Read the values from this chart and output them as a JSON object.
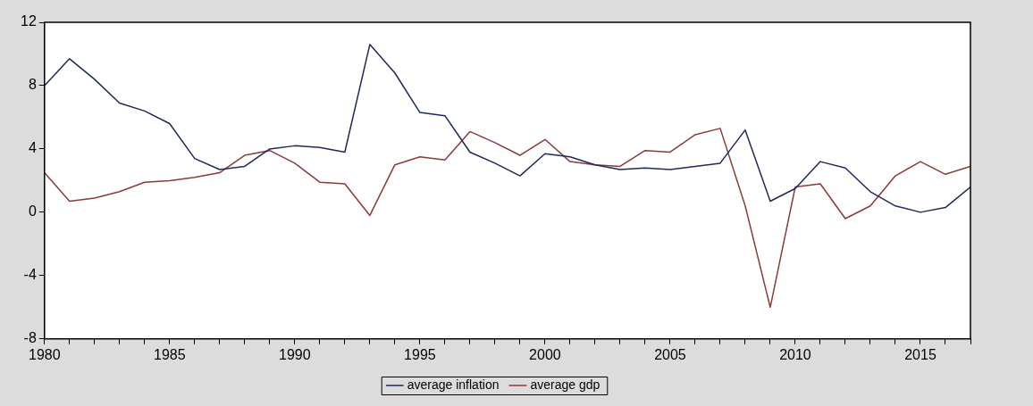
{
  "chart_data": {
    "type": "line",
    "x": [
      1980,
      1981,
      1982,
      1983,
      1984,
      1985,
      1986,
      1987,
      1988,
      1989,
      1990,
      1991,
      1992,
      1993,
      1994,
      1995,
      1996,
      1997,
      1998,
      1999,
      2000,
      2001,
      2002,
      2003,
      2004,
      2005,
      2006,
      2007,
      2008,
      2009,
      2010,
      2011,
      2012,
      2013,
      2014,
      2015,
      2016,
      2017
    ],
    "series": [
      {
        "name": "average inflation",
        "color": "#1f2a5a",
        "values": [
          8.0,
          9.7,
          8.4,
          6.9,
          6.4,
          5.6,
          3.4,
          2.7,
          2.9,
          4.0,
          4.2,
          4.1,
          3.8,
          10.6,
          8.8,
          6.3,
          6.1,
          3.8,
          3.1,
          2.3,
          3.7,
          3.5,
          3.0,
          2.7,
          2.8,
          2.7,
          2.9,
          3.1,
          5.2,
          0.7,
          1.5,
          3.2,
          2.8,
          1.3,
          0.4,
          0.0,
          0.3,
          1.6
        ]
      },
      {
        "name": "average gdp",
        "color": "#8b3a3a",
        "values": [
          2.5,
          0.7,
          0.9,
          1.3,
          1.9,
          2.0,
          2.2,
          2.5,
          3.6,
          3.9,
          3.1,
          1.9,
          1.8,
          -0.2,
          3.0,
          3.5,
          3.3,
          5.1,
          4.4,
          3.6,
          4.6,
          3.2,
          3.0,
          2.9,
          3.9,
          3.8,
          4.9,
          5.3,
          0.4,
          -6.0,
          1.6,
          1.8,
          -0.4,
          0.4,
          2.3,
          3.2,
          2.4,
          2.9
        ]
      }
    ],
    "xlim": [
      1980,
      2017
    ],
    "xticks": [
      1980,
      {
        "value": 1981,
        "label": null
      },
      {
        "value": 1982,
        "label": null
      },
      {
        "value": 1983,
        "label": null
      },
      {
        "value": 1984,
        "label": null
      },
      1985,
      {
        "value": 1986,
        "label": null
      },
      {
        "value": 1987,
        "label": null
      },
      {
        "value": 1988,
        "label": null
      },
      {
        "value": 1989,
        "label": null
      },
      1990,
      {
        "value": 1991,
        "label": null
      },
      {
        "value": 1992,
        "label": null
      },
      {
        "value": 1993,
        "label": null
      },
      {
        "value": 1994,
        "label": null
      },
      1995,
      {
        "value": 1996,
        "label": null
      },
      {
        "value": 1997,
        "label": null
      },
      {
        "value": 1998,
        "label": null
      },
      {
        "value": 1999,
        "label": null
      },
      2000,
      {
        "value": 2001,
        "label": null
      },
      {
        "value": 2002,
        "label": null
      },
      {
        "value": 2003,
        "label": null
      },
      {
        "value": 2004,
        "label": null
      },
      2005,
      {
        "value": 2006,
        "label": null
      },
      {
        "value": 2007,
        "label": null
      },
      {
        "value": 2008,
        "label": null
      },
      {
        "value": 2009,
        "label": null
      },
      2010,
      {
        "value": 2011,
        "label": null
      },
      {
        "value": 2012,
        "label": null
      },
      {
        "value": 2013,
        "label": null
      },
      {
        "value": 2014,
        "label": null
      },
      2015,
      {
        "value": 2016,
        "label": null
      },
      {
        "value": 2017,
        "label": null
      }
    ],
    "ylim": [
      -8,
      12
    ],
    "yticks": [
      -8,
      -4,
      0,
      4,
      8,
      12
    ],
    "grid": false,
    "legend": "bottom",
    "marker": "none",
    "line_style": "solid"
  }
}
